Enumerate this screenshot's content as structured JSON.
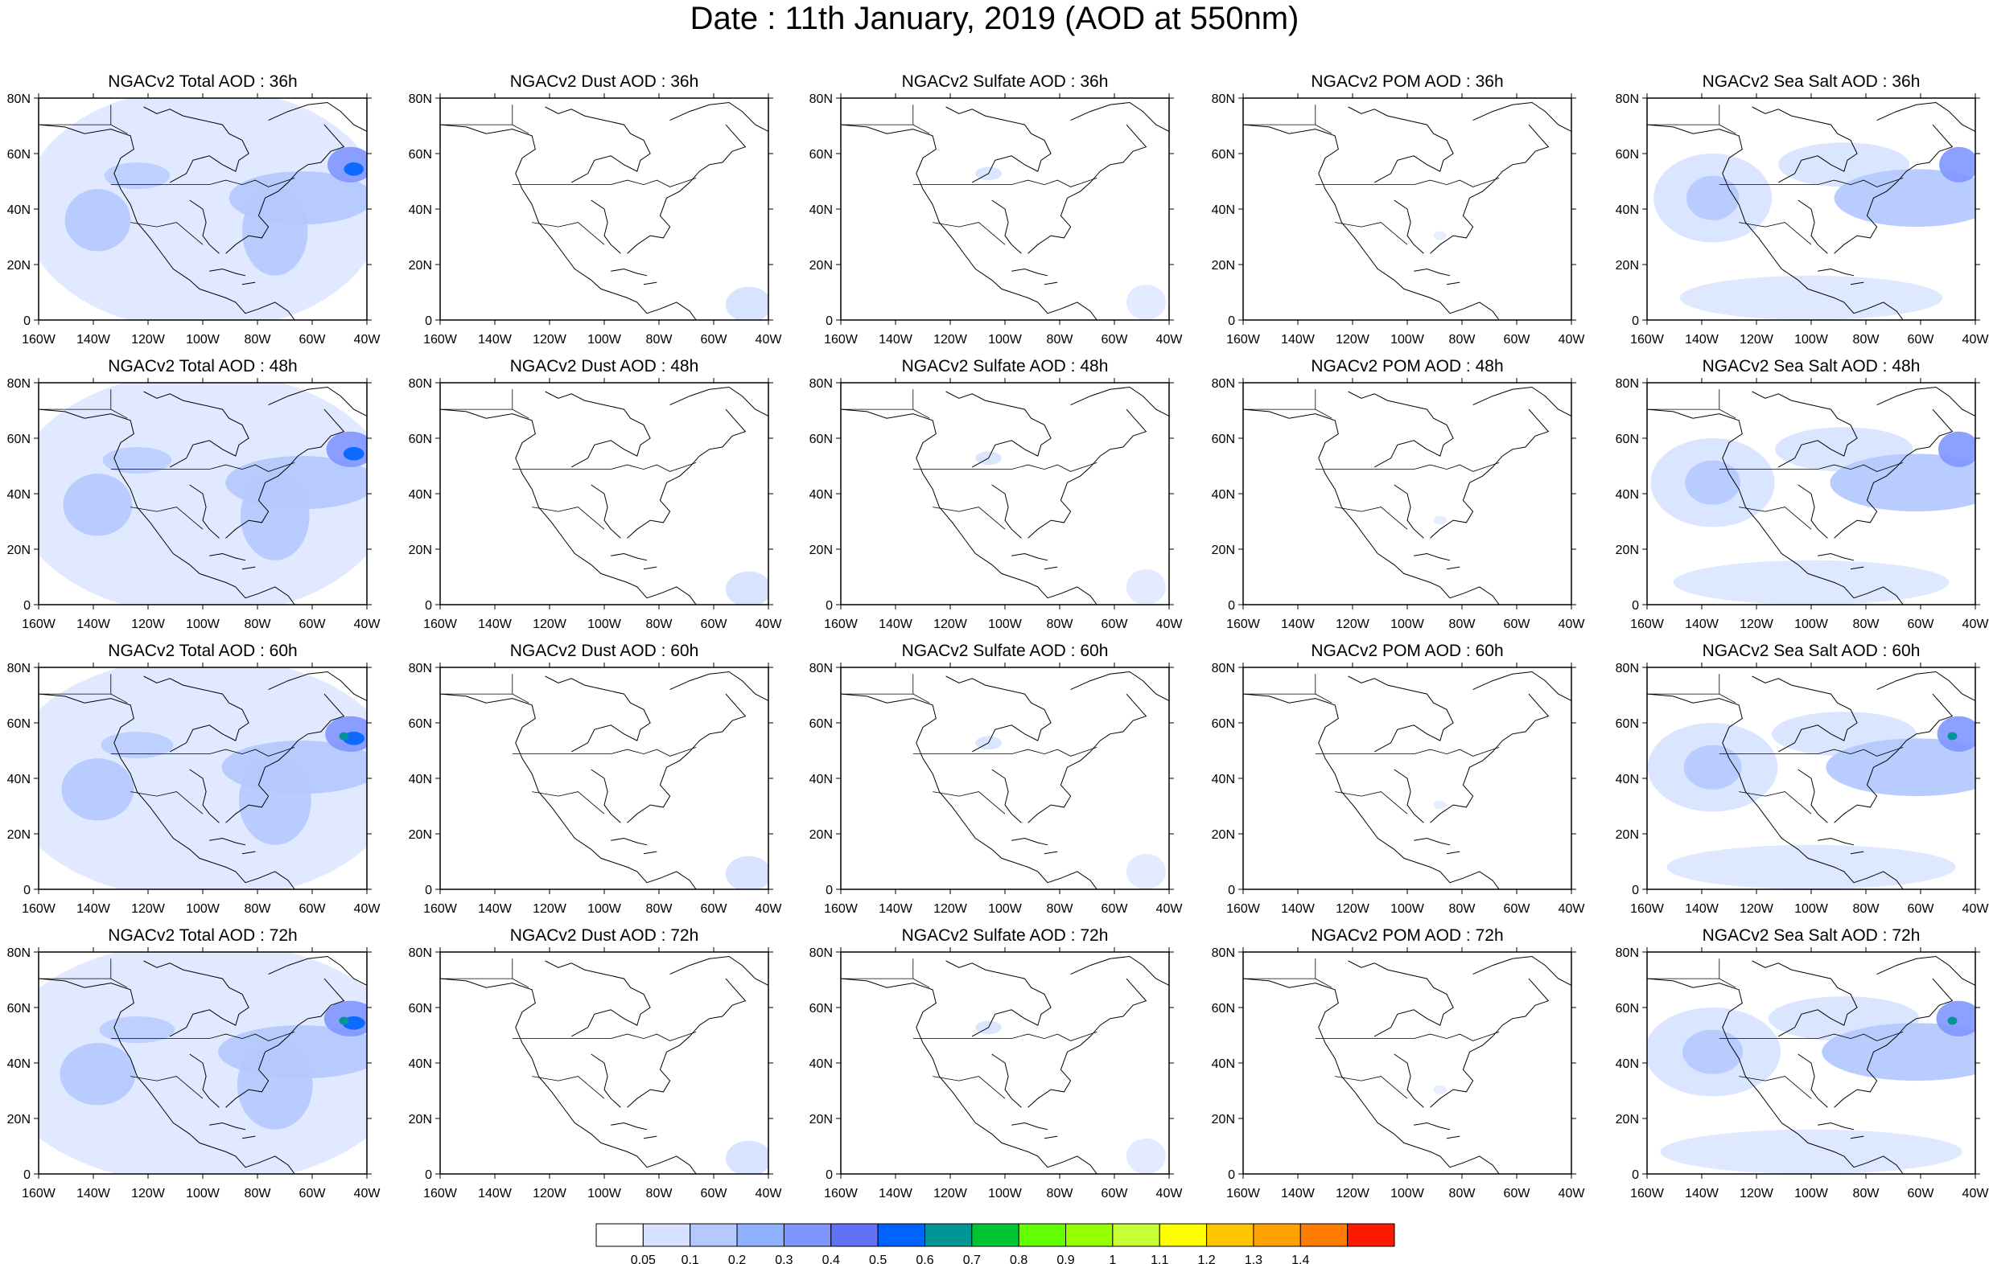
{
  "title": "Date : 11th January, 2019 (AOD at 550nm)",
  "panels": [
    [
      "NGACv2 Total AOD : 36h",
      "NGACv2 Dust AOD : 36h",
      "NGACv2 Sulfate AOD : 36h",
      "NGACv2 POM AOD : 36h",
      "NGACv2 Sea Salt AOD : 36h"
    ],
    [
      "NGACv2 Total AOD : 48h",
      "NGACv2 Dust AOD : 48h",
      "NGACv2 Sulfate AOD : 48h",
      "NGACv2 POM AOD : 48h",
      "NGACv2 Sea Salt AOD : 48h"
    ],
    [
      "NGACv2 Total AOD : 60h",
      "NGACv2 Dust AOD : 60h",
      "NGACv2 Sulfate AOD : 60h",
      "NGACv2 POM AOD : 60h",
      "NGACv2 Sea Salt AOD : 60h"
    ],
    [
      "NGACv2 Total AOD : 72h",
      "NGACv2 Dust AOD : 72h",
      "NGACv2 Sulfate AOD : 72h",
      "NGACv2 POM AOD : 72h",
      "NGACv2 Sea Salt  AOD : 72h"
    ]
  ],
  "lat_ticks": [
    "80N",
    "60N",
    "40N",
    "20N",
    "0"
  ],
  "lon_ticks": [
    "160W",
    "140W",
    "120W",
    "100W",
    "80W",
    "60W",
    "40W"
  ],
  "colorbar": {
    "labels": [
      "0.05",
      "0.1",
      "0.2",
      "0.3",
      "0.4",
      "0.5",
      "0.6",
      "0.7",
      "0.8",
      "0.9",
      "1",
      "1.1",
      "1.2",
      "1.3",
      "1.4"
    ],
    "colors": [
      "#ffffff",
      "#d6e2ff",
      "#b5c9ff",
      "#8eb2ff",
      "#7f96ff",
      "#6370f8",
      "#0063ff",
      "#009696",
      "#00c633",
      "#63ff00",
      "#96ff00",
      "#c6ff33",
      "#ffff00",
      "#ffc600",
      "#ffa000",
      "#ff7c00",
      "#ff1900"
    ]
  }
}
